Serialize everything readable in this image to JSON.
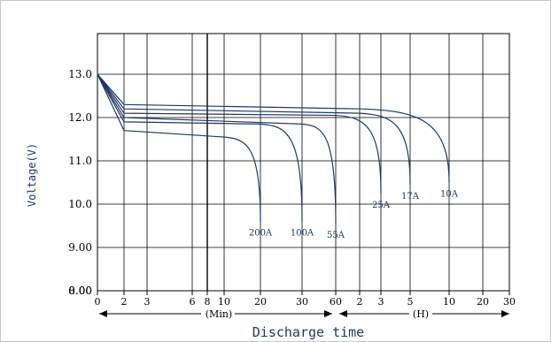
{
  "chart_data": {
    "type": "line",
    "title": "",
    "xlabel": "Discharge time",
    "ylabel": "Voltage(V)",
    "ylim": [
      0,
      13
    ],
    "y_ticks": [
      {
        "v": 0,
        "label": "0.00"
      },
      {
        "v": 8,
        "label": "8.00"
      },
      {
        "v": 9,
        "label": "9.00"
      },
      {
        "v": 10,
        "label": "10.0"
      },
      {
        "v": 11,
        "label": "11.0"
      },
      {
        "v": 12,
        "label": "12.0"
      },
      {
        "v": 13,
        "label": "13.0"
      }
    ],
    "x_ticks": [
      {
        "key": "0",
        "label": "0"
      },
      {
        "key": "2",
        "label": "2"
      },
      {
        "key": "3",
        "label": "3"
      },
      {
        "key": "6",
        "label": "6"
      },
      {
        "key": "8",
        "label": "8"
      },
      {
        "key": "10",
        "label": "10"
      },
      {
        "key": "20",
        "label": "20"
      },
      {
        "key": "30",
        "label": "30"
      },
      {
        "key": "60",
        "label": "60"
      },
      {
        "key": "2H",
        "label": "2"
      },
      {
        "key": "3H",
        "label": "3"
      },
      {
        "key": "5H",
        "label": "5"
      },
      {
        "key": "10H",
        "label": "10"
      },
      {
        "key": "20H",
        "label": "20"
      },
      {
        "key": "30H",
        "label": "30"
      }
    ],
    "x_units": {
      "min": "(Min)",
      "hour": "(H)"
    },
    "grid": true,
    "series": [
      {
        "name": "200A",
        "points": [
          [
            "0",
            13.0
          ],
          [
            "2",
            11.7
          ],
          [
            "10",
            11.55
          ],
          [
            "20",
            9.6
          ]
        ]
      },
      {
        "name": "100A",
        "points": [
          [
            "0",
            13.0
          ],
          [
            "2",
            11.9
          ],
          [
            "20",
            11.85
          ],
          [
            "30",
            9.6
          ]
        ]
      },
      {
        "name": "55A",
        "points": [
          [
            "0",
            13.0
          ],
          [
            "2",
            12.0
          ],
          [
            "30",
            11.85
          ],
          [
            "60",
            9.55
          ]
        ]
      },
      {
        "name": "25A",
        "points": [
          [
            "0",
            13.0
          ],
          [
            "2",
            12.1
          ],
          [
            "60",
            12.05
          ],
          [
            "3H",
            10.25
          ]
        ]
      },
      {
        "name": "17A",
        "points": [
          [
            "0",
            13.0
          ],
          [
            "2",
            12.2
          ],
          [
            "2H",
            12.1
          ],
          [
            "5H",
            10.45
          ]
        ]
      },
      {
        "name": "10A",
        "points": [
          [
            "0",
            13.0
          ],
          [
            "2",
            12.3
          ],
          [
            "2H",
            12.2
          ],
          [
            "10H",
            10.5
          ]
        ]
      }
    ]
  }
}
